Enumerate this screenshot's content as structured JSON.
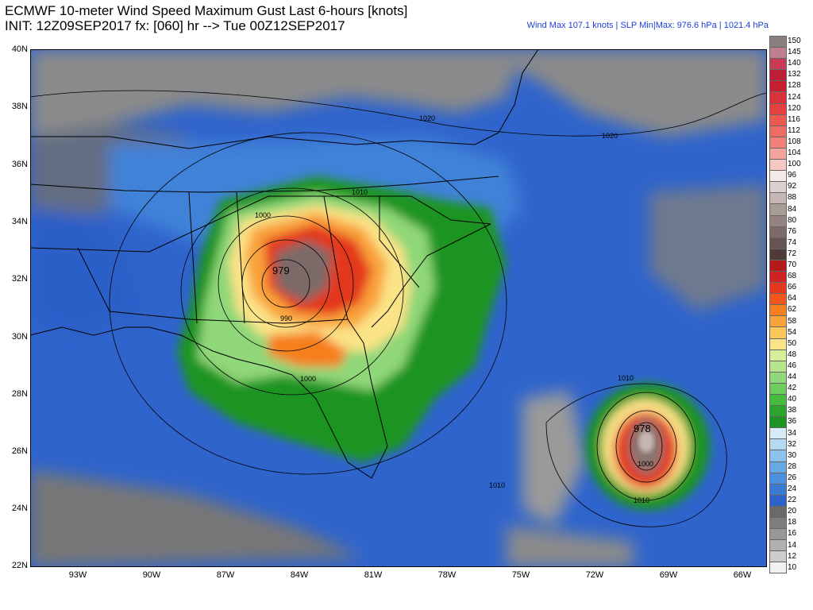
{
  "header": {
    "title_line1": "ECMWF 10-meter Wind Speed Maximum Gust Last 6-hours [knots]",
    "title_line2": "INIT: 12Z09SEP2017 fx: [060] hr --> Tue 00Z12SEP2017",
    "stats": "Wind Max 107.1 knots | SLP Min|Max: 976.6 hPa | 1021.4 hPa"
  },
  "lat_labels": [
    "40N",
    "38N",
    "36N",
    "34N",
    "32N",
    "30N",
    "28N",
    "26N",
    "24N",
    "22N"
  ],
  "lon_labels": [
    "93W",
    "90W",
    "87W",
    "84W",
    "81W",
    "78W",
    "75W",
    "72W",
    "69W",
    "66W"
  ],
  "isobar_labels": [
    "1020",
    "1020",
    "1010",
    "1000",
    "979",
    "990",
    "1000",
    "1010",
    "1010",
    "978",
    "1000",
    "1010"
  ],
  "colorbar": {
    "labels": [
      "150",
      "145",
      "140",
      "132",
      "128",
      "124",
      "120",
      "116",
      "112",
      "108",
      "104",
      "100",
      "96",
      "92",
      "88",
      "84",
      "80",
      "76",
      "74",
      "72",
      "70",
      "68",
      "66",
      "64",
      "62",
      "58",
      "54",
      "50",
      "48",
      "46",
      "44",
      "42",
      "40",
      "38",
      "36",
      "34",
      "32",
      "30",
      "28",
      "26",
      "24",
      "22",
      "20",
      "18",
      "16",
      "14",
      "12",
      "10"
    ],
    "colors": [
      "#8a8080",
      "#c07f8f",
      "#c93b55",
      "#bd1f37",
      "#c51f2d",
      "#d8323a",
      "#e5423f",
      "#ee5950",
      "#f06c63",
      "#f27f79",
      "#f5a39d",
      "#f7c7c3",
      "#f4eae8",
      "#dcd1cf",
      "#c7b7b4",
      "#ab9c98",
      "#938481",
      "#7c6b68",
      "#665452",
      "#4f3a38",
      "#b51a1a",
      "#cf2222",
      "#e4371e",
      "#f2561b",
      "#f67f1f",
      "#f9a23b",
      "#fbc65a",
      "#fbe387",
      "#d7ef9a",
      "#b7e58e",
      "#8fd778",
      "#6ccc5d",
      "#46bb3c",
      "#2aa62c",
      "#1e9424",
      "#d8ecf7",
      "#b4daf1",
      "#8cc2ec",
      "#67a9e5",
      "#4b90de",
      "#3a7bd6",
      "#2e62cb",
      "#6a6a6a",
      "#7e7e7e",
      "#979797",
      "#b0b0b0",
      "#cdcdcd",
      "#f2f2f2"
    ]
  }
}
